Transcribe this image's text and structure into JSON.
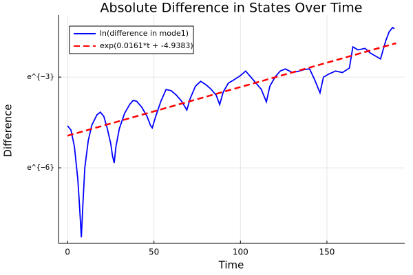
{
  "chart_data": {
    "type": "line",
    "title": "Absolute Difference in States Over Time",
    "xlabel": "Time",
    "ylabel": "Difference",
    "xlim": [
      -5.2,
      195
    ],
    "xticks": [
      0,
      50,
      100,
      150
    ],
    "ylim": [
      -8.5,
      -0.95
    ],
    "yticks": [
      {
        "value": -6,
        "label": "e^{−6}"
      },
      {
        "value": -3,
        "label": "e^{−3}"
      }
    ],
    "grid": true,
    "legend": "top-left",
    "series": [
      {
        "name": "ln(difference in mode1)",
        "color": "#0000ff",
        "style": "solid",
        "x": [
          0,
          2,
          4,
          6,
          7,
          8,
          9,
          10,
          12,
          14,
          17,
          19,
          21,
          23,
          25,
          26,
          27,
          28,
          30,
          33,
          36,
          38,
          40,
          43,
          46,
          48,
          49,
          51,
          54,
          57,
          60,
          63,
          66,
          69,
          71,
          74,
          77,
          80,
          83,
          86,
          88,
          90,
          93,
          96,
          100,
          103,
          106,
          109,
          112,
          115,
          117,
          120,
          123,
          126,
          130,
          134,
          137,
          140,
          143,
          146,
          148,
          151,
          155,
          159,
          163,
          165,
          168,
          172,
          175,
          178,
          181,
          184,
          186,
          188,
          189
        ],
        "values": [
          -4.61,
          -4.75,
          -5.3,
          -6.4,
          -7.3,
          -8.3,
          -7.1,
          -6.0,
          -5.1,
          -4.6,
          -4.25,
          -4.16,
          -4.3,
          -4.7,
          -5.2,
          -5.6,
          -5.84,
          -5.3,
          -4.7,
          -4.2,
          -3.9,
          -3.77,
          -3.8,
          -4.0,
          -4.3,
          -4.6,
          -4.68,
          -4.3,
          -3.8,
          -3.41,
          -3.45,
          -3.6,
          -3.8,
          -4.09,
          -3.7,
          -3.3,
          -3.14,
          -3.25,
          -3.4,
          -3.6,
          -3.91,
          -3.5,
          -3.2,
          -3.1,
          -2.95,
          -2.8,
          -3.0,
          -3.2,
          -3.4,
          -3.82,
          -3.3,
          -3.0,
          -2.8,
          -2.73,
          -2.85,
          -2.8,
          -2.75,
          -2.73,
          -3.1,
          -3.52,
          -3.0,
          -2.9,
          -2.8,
          -2.85,
          -2.7,
          -2.0,
          -2.1,
          -2.05,
          -2.2,
          -2.3,
          -2.4,
          -1.8,
          -1.5,
          -1.36,
          -1.4
        ]
      },
      {
        "name": "exp(0.0161*t + -4.9383)",
        "color": "#ff0000",
        "style": "dashed",
        "x": [
          0,
          190
        ],
        "values": [
          -4.9383,
          -1.8793
        ]
      }
    ]
  }
}
